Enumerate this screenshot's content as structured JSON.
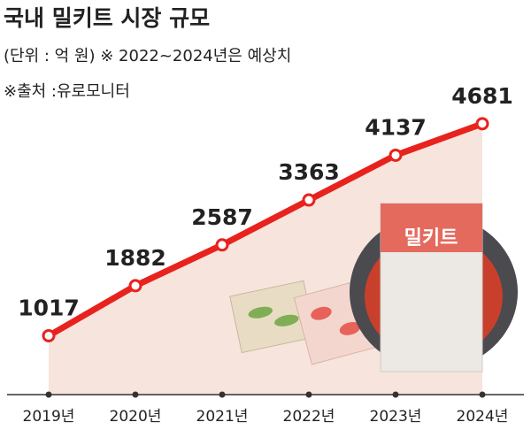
{
  "chart_data": {
    "type": "line",
    "title": "국내 밀키트 시장 규모",
    "subtitle": "(단위 : 억 원)  ※ 2022~2024년은 예상치",
    "source": "※출처 :유로모니터",
    "illustration_text": "밀키트",
    "categories": [
      "2019년",
      "2020년",
      "2021년",
      "2022년",
      "2023년",
      "2024년"
    ],
    "series": [
      {
        "name": "국내 밀키트 시장 규모",
        "color": "#e8221d",
        "values": [
          1017,
          1882,
          2587,
          3363,
          4137,
          4681
        ]
      }
    ],
    "ylim": [
      0,
      5000
    ],
    "area_color": "#f6e4dd"
  }
}
